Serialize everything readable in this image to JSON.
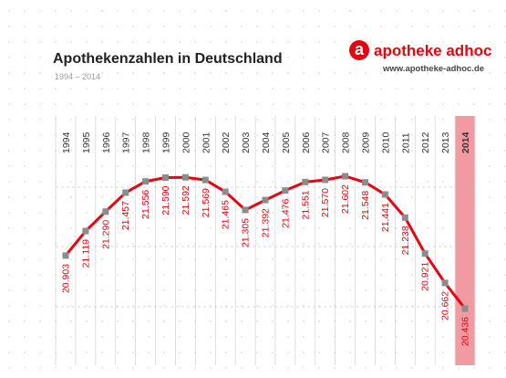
{
  "chart_data": {
    "type": "line",
    "title": "Apothekenzahlen in Deutschland",
    "subtitle": "1994 – 2014",
    "x": [
      "1994",
      "1995",
      "1996",
      "1997",
      "1998",
      "1999",
      "2000",
      "2001",
      "2002",
      "2003",
      "2004",
      "2005",
      "2006",
      "2007",
      "2008",
      "2009",
      "2010",
      "2011",
      "2012",
      "2013",
      "2014"
    ],
    "values": [
      20903,
      21119,
      21290,
      21457,
      21556,
      21590,
      21592,
      21569,
      21465,
      21305,
      21392,
      21476,
      21551,
      21570,
      21602,
      21548,
      21441,
      21238,
      20921,
      20662,
      20436
    ],
    "value_labels": [
      "20.903",
      "21.119",
      "21.290",
      "21.457",
      "21.556",
      "21.590",
      "21.592",
      "21.569",
      "21.465",
      "21.305",
      "21.392",
      "21.476",
      "21.551",
      "21.570",
      "21.602",
      "21.548",
      "21.441",
      "21.238",
      "20.921",
      "20.662",
      "20.436"
    ],
    "highlight": "2014",
    "ylim": [
      20436,
      21602
    ],
    "grid": true,
    "colors": {
      "line": "#e30613",
      "marker": "#8c8c8c",
      "highlight": "#f19aa1",
      "label": "#e30613"
    }
  },
  "brand": {
    "logo_letter": "a",
    "name": "apotheke adhoc",
    "url": "www.apotheke-adhoc.de",
    "color": "#e30613"
  }
}
